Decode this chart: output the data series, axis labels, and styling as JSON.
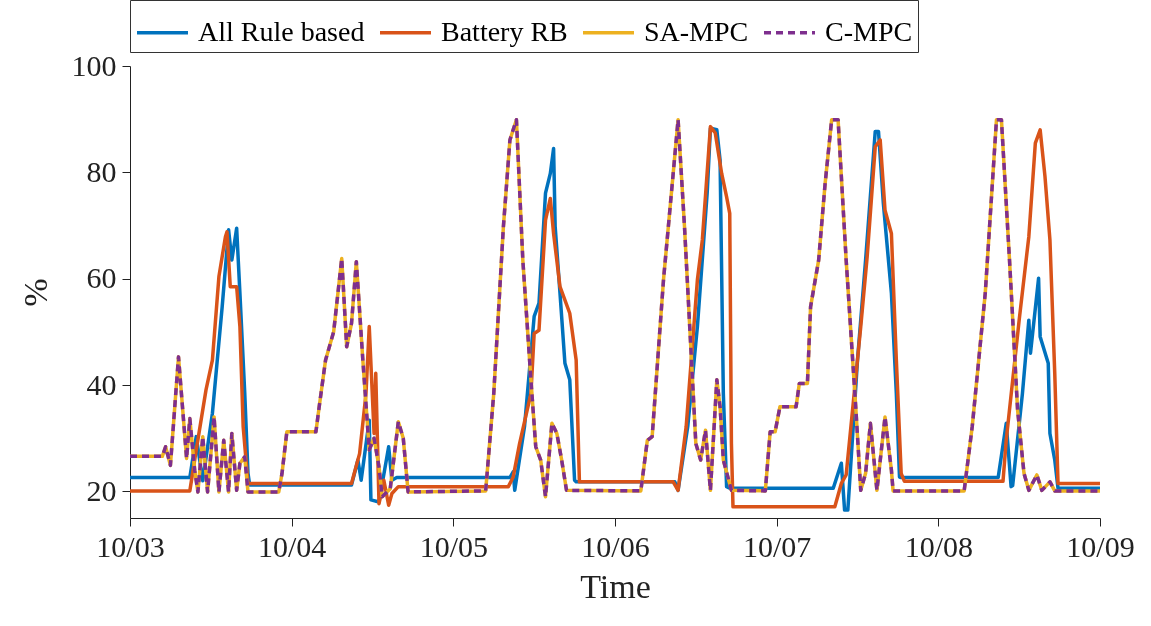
{
  "chart_data": {
    "type": "line",
    "xlabel": "Time",
    "ylabel": "%",
    "xlim": [
      "--10-03",
      "--10-09"
    ],
    "xticks": [
      {
        "value": "--10-03",
        "label": "10/03"
      },
      {
        "value": "--10-04",
        "label": "10/04"
      },
      {
        "value": "--10-05",
        "label": "10/05"
      },
      {
        "value": "--10-06",
        "label": "10/06"
      },
      {
        "value": "--10-07",
        "label": "10/07"
      },
      {
        "value": "--10-08",
        "label": "10/08"
      },
      {
        "value": "--10-09",
        "label": "10/09"
      }
    ],
    "ylim": [
      15,
      100
    ],
    "yticks": [
      20,
      40,
      60,
      80,
      100
    ],
    "legend": "top",
    "marker": "none",
    "series": [
      {
        "name": "All Rule based",
        "color": "#0072bd",
        "line_style": "solid",
        "x": [
          "--10-03T00:00",
          "--10-03T08:53",
          "--10-03T09:50",
          "--10-03T10:48",
          "--10-03T12:14",
          "--10-03T13:41",
          "--10-03T14:38",
          "--10-03T15:07",
          "--10-03T15:50",
          "--10-03T16:19",
          "--10-03T17:02",
          "--10-03T17:31",
          "--10-03T17:46",
          "--10-04T08:53",
          "--10-04T09:50",
          "--10-04T10:19",
          "--10-04T11:31",
          "--10-04T11:46",
          "--10-04T12:58",
          "--10-04T14:24",
          "--10-04T14:53",
          "--10-04T15:36",
          "--10-05T08:24",
          "--10-05T08:53",
          "--10-05T09:07",
          "--10-05T10:34",
          "--10-05T12:00",
          "--10-05T12:43",
          "--10-05T13:41",
          "--10-05T14:24",
          "--10-05T14:53",
          "--10-05T15:07",
          "--10-05T15:50",
          "--10-05T16:34",
          "--10-05T17:17",
          "--10-05T18:00",
          "--10-05T18:14",
          "--10-06T08:53",
          "--10-06T09:22",
          "--10-06T10:48",
          "--10-06T12:14",
          "--10-06T13:41",
          "--10-06T14:10",
          "--10-06T15:07",
          "--10-06T15:36",
          "--10-06T16:05",
          "--10-06T16:34",
          "--10-06T17:02",
          "--10-07T08:24",
          "--10-07T09:36",
          "--10-07T10:05",
          "--10-07T10:34",
          "--10-07T12:00",
          "--10-07T13:12",
          "--10-07T14:38",
          "--10-07T15:07",
          "--10-07T15:50",
          "--10-07T17:02",
          "--10-07T17:46",
          "--10-07T18:14",
          "--10-07T18:29",
          "--10-08T08:53",
          "--10-08T10:05",
          "--10-08T10:48",
          "--10-08T11:02",
          "--10-08T12:29",
          "--10-08T13:26",
          "--10-08T13:41",
          "--10-08T14:53",
          "--10-08T15:07",
          "--10-08T16:19",
          "--10-08T16:34",
          "--10-08T17:17",
          "--10-08T17:46",
          "--10-09T00:00"
        ],
        "values": [
          22.6,
          22.6,
          30.3,
          22,
          34.7,
          54.7,
          69.2,
          63.5,
          69.5,
          57.3,
          38.5,
          23.4,
          21.2,
          21.2,
          25.9,
          22.1,
          33.4,
          18.4,
          18,
          28.4,
          22.1,
          22.6,
          22.6,
          23.7,
          20.2,
          32.2,
          52.9,
          55.4,
          76.1,
          79.8,
          84.5,
          69.8,
          57.3,
          44.1,
          41,
          22.1,
          21.8,
          21.8,
          20.2,
          32.2,
          51,
          76.1,
          88.3,
          88,
          82.3,
          38.4,
          20.9,
          20.6,
          20.6,
          25.3,
          16.5,
          16.5,
          44.7,
          63.5,
          87.7,
          87.7,
          74.2,
          57.3,
          38.4,
          22.7,
          22.6,
          22.6,
          32.8,
          20.9,
          21.1,
          38.4,
          52.2,
          46,
          60.1,
          49.1,
          44.1,
          30.9,
          25.9,
          20.6,
          20.6
        ]
      },
      {
        "name": "Battery RB",
        "color": "#d95319",
        "line_style": "solid",
        "x": [
          "--10-03T00:00",
          "--10-03T08:53",
          "--10-03T09:50",
          "--10-03T11:17",
          "--10-03T12:14",
          "--10-03T13:12",
          "--10-03T14:10",
          "--10-03T14:24",
          "--10-03T14:53",
          "--10-03T15:50",
          "--10-03T16:19",
          "--10-03T16:48",
          "--10-03T17:31",
          "--10-04T08:53",
          "--10-04T10:05",
          "--10-04T11:02",
          "--10-04T11:31",
          "--10-04T12:14",
          "--10-04T12:29",
          "--10-04T12:58",
          "--10-04T13:41",
          "--10-04T14:24",
          "--10-04T14:53",
          "--10-04T15:50",
          "--10-05T08:10",
          "--10-05T08:53",
          "--10-05T09:50",
          "--10-05T11:31",
          "--10-05T12:00",
          "--10-05T12:43",
          "--10-05T13:41",
          "--10-05T14:24",
          "--10-05T14:53",
          "--10-05T15:50",
          "--10-05T17:17",
          "--10-05T18:14",
          "--10-05T18:43",
          "--10-06T08:38",
          "--10-06T09:22",
          "--10-06T10:34",
          "--10-06T12:14",
          "--10-06T12:58",
          "--10-06T14:10",
          "--10-06T14:53",
          "--10-06T15:50",
          "--10-06T16:34",
          "--10-06T17:02",
          "--10-06T17:17",
          "--10-06T17:31",
          "--10-07T08:38",
          "--10-07T09:36",
          "--10-07T10:19",
          "--10-07T12:29",
          "--10-07T13:26",
          "--10-07T14:38",
          "--10-07T15:22",
          "--10-07T16:05",
          "--10-07T17:02",
          "--10-07T17:46",
          "--10-07T18:29",
          "--10-07T18:58",
          "--10-08T09:36",
          "--10-08T10:05",
          "--10-08T12:00",
          "--10-08T13:26",
          "--10-08T14:24",
          "--10-08T15:07",
          "--10-08T15:50",
          "--10-08T16:34",
          "--10-08T17:17",
          "--10-08T17:46",
          "--10-09T00:00"
        ],
        "values": [
          20.1,
          20.1,
          27.8,
          39.1,
          44.7,
          60.4,
          67.9,
          68.8,
          58.5,
          58.5,
          51,
          32.2,
          21.5,
          21.5,
          27.1,
          38.4,
          51,
          30.9,
          42.2,
          17.7,
          22.1,
          17.4,
          19.6,
          20.9,
          20.9,
          22.7,
          29,
          38.4,
          49.7,
          50.3,
          71,
          75.1,
          68.5,
          58.5,
          53.5,
          44.7,
          21.8,
          21.8,
          20.2,
          32.2,
          59.8,
          67.3,
          88.6,
          87.4,
          79.8,
          75.4,
          72.3,
          29,
          17.1,
          17.1,
          21.5,
          23.1,
          51,
          64.1,
          84.8,
          86.1,
          72.9,
          68.5,
          44.7,
          23.4,
          21.9,
          21.9,
          29.7,
          52.2,
          67.9,
          85.5,
          88,
          79.2,
          67.3,
          42.2,
          21.5,
          21.5
        ]
      },
      {
        "name": "SA-MPC",
        "color": "#edb120",
        "line_style": "solid",
        "x": [
          "--10-03T00:00",
          "--10-03T04:48",
          "--10-03T05:17",
          "--10-03T06:00",
          "--10-03T07:12",
          "--10-03T08:24",
          "--10-03T08:53",
          "--10-03T09:36",
          "--10-03T10:05",
          "--10-03T10:48",
          "--10-03T11:31",
          "--10-03T12:29",
          "--10-03T13:12",
          "--10-03T13:55",
          "--10-03T14:38",
          "--10-03T15:07",
          "--10-03T15:50",
          "--10-03T16:19",
          "--10-03T17:02",
          "--10-03T17:31",
          "--10-03T22:05",
          "--10-03T22:34",
          "--10-03T23:17",
          "--10-04T03:36",
          "--10-04T04:05",
          "--10-04T05:02",
          "--10-04T06:14",
          "--10-04T07:26",
          "--10-04T08:10",
          "--10-04T08:53",
          "--10-04T09:36",
          "--10-04T10:34",
          "--10-04T11:31",
          "--10-04T12:14",
          "--10-04T12:58",
          "--10-04T13:26",
          "--10-04T14:38",
          "--10-04T15:50",
          "--10-04T16:34",
          "--10-04T17:17",
          "--10-05T04:48",
          "--10-05T06:00",
          "--10-05T07:26",
          "--10-05T08:24",
          "--10-05T09:22",
          "--10-05T10:19",
          "--10-05T11:31",
          "--10-05T12:14",
          "--10-05T12:58",
          "--10-05T13:41",
          "--10-05T14:38",
          "--10-05T15:22",
          "--10-05T16:05",
          "--10-05T16:48",
          "--10-06T03:50",
          "--10-06T04:48",
          "--10-06T05:31",
          "--10-06T07:12",
          "--10-06T09:22",
          "--10-06T10:19",
          "--10-06T12:00",
          "--10-06T12:43",
          "--10-06T13:26",
          "--10-06T14:10",
          "--10-06T15:07",
          "--10-06T15:36",
          "--10-06T16:05",
          "--10-06T17:17",
          "--10-06T22:19",
          "--10-06T23:02",
          "--10-06T23:46",
          "--10-07T00:29",
          "--10-07T02:53",
          "--10-07T03:22",
          "--10-07T04:34",
          "--10-07T05:02",
          "--10-07T06:14",
          "--10-07T07:12",
          "--10-07T08:10",
          "--10-07T09:07",
          "--10-07T10:19",
          "--10-07T11:46",
          "--10-07T12:29",
          "--10-07T13:12",
          "--10-07T13:55",
          "--10-07T14:53",
          "--10-07T16:05",
          "--10-07T17:02",
          "--10-07T17:17",
          "--10-08T03:50",
          "--10-08T05:02",
          "--10-08T06:58",
          "--10-08T08:38",
          "--10-08T09:22",
          "--10-08T10:34",
          "--10-08T11:46",
          "--10-08T12:43",
          "--10-08T13:26",
          "--10-08T14:38",
          "--10-08T15:22",
          "--10-08T16:34",
          "--10-08T17:17",
          "--10-09T00:00"
        ],
        "values": [
          26.6,
          26.6,
          28.4,
          24.9,
          45.3,
          26.2,
          33.7,
          24,
          19.9,
          30.3,
          19.9,
          34,
          19.9,
          29.6,
          19.9,
          30.9,
          20.2,
          25.3,
          26.5,
          19.9,
          19.9,
          23.4,
          31.2,
          31.2,
          35.9,
          44.7,
          50,
          63.8,
          47.2,
          51.6,
          63.2,
          44.7,
          27.8,
          30,
          24.6,
          19,
          20.5,
          33.1,
          30,
          19.9,
          20.1,
          38.4,
          69.8,
          86.1,
          89.9,
          63.5,
          41,
          28.4,
          25.9,
          19,
          32.8,
          30.9,
          25.9,
          20.2,
          20.1,
          29.6,
          30.3,
          59.8,
          89.9,
          69.8,
          29,
          25.9,
          31.5,
          20.2,
          41,
          35.9,
          25.9,
          20.2,
          20.1,
          31.2,
          31.2,
          35.9,
          35.9,
          40.3,
          40.3,
          54.7,
          63.5,
          78,
          89.9,
          89.9,
          63.5,
          35.3,
          20.2,
          23.4,
          32.8,
          20.2,
          34,
          24,
          20.1,
          20.1,
          32.2,
          57.3,
          89.9,
          89.9,
          63.5,
          35.3,
          23.4,
          20.2,
          23.1,
          20.2,
          21.8,
          20.1,
          20.1
        ]
      },
      {
        "name": "C-MPC",
        "color": "#7e2f8e",
        "line_style": "dashed",
        "x": [
          "--10-03T00:00",
          "--10-03T04:48",
          "--10-03T05:17",
          "--10-03T06:00",
          "--10-03T07:12",
          "--10-03T08:24",
          "--10-03T08:53",
          "--10-03T09:36",
          "--10-03T10:05",
          "--10-03T10:48",
          "--10-03T11:31",
          "--10-03T12:29",
          "--10-03T13:12",
          "--10-03T13:55",
          "--10-03T14:38",
          "--10-03T15:07",
          "--10-03T15:50",
          "--10-03T16:19",
          "--10-03T17:02",
          "--10-03T17:31",
          "--10-03T22:05",
          "--10-03T22:34",
          "--10-03T23:17",
          "--10-04T03:36",
          "--10-04T04:05",
          "--10-04T05:02",
          "--10-04T06:14",
          "--10-04T07:26",
          "--10-04T08:10",
          "--10-04T08:53",
          "--10-04T09:36",
          "--10-04T10:34",
          "--10-04T11:31",
          "--10-04T12:14",
          "--10-04T12:58",
          "--10-04T13:26",
          "--10-04T14:38",
          "--10-04T15:50",
          "--10-04T16:34",
          "--10-04T17:17",
          "--10-05T04:48",
          "--10-05T06:00",
          "--10-05T07:26",
          "--10-05T08:24",
          "--10-05T09:22",
          "--10-05T10:19",
          "--10-05T11:31",
          "--10-05T12:14",
          "--10-05T12:58",
          "--10-05T13:41",
          "--10-05T14:38",
          "--10-05T15:22",
          "--10-05T16:05",
          "--10-05T16:48",
          "--10-06T03:50",
          "--10-06T04:48",
          "--10-06T05:31",
          "--10-06T07:12",
          "--10-06T09:22",
          "--10-06T10:19",
          "--10-06T12:00",
          "--10-06T12:43",
          "--10-06T13:26",
          "--10-06T14:10",
          "--10-06T15:07",
          "--10-06T15:36",
          "--10-06T16:05",
          "--10-06T17:17",
          "--10-06T22:19",
          "--10-06T23:02",
          "--10-06T23:46",
          "--10-07T00:29",
          "--10-07T02:53",
          "--10-07T03:22",
          "--10-07T04:34",
          "--10-07T05:02",
          "--10-07T06:14",
          "--10-07T07:12",
          "--10-07T08:10",
          "--10-07T09:07",
          "--10-07T10:19",
          "--10-07T11:46",
          "--10-07T12:29",
          "--10-07T13:12",
          "--10-07T13:55",
          "--10-07T14:53",
          "--10-07T16:05",
          "--10-07T17:02",
          "--10-07T17:17",
          "--10-08T03:50",
          "--10-08T05:02",
          "--10-08T06:58",
          "--10-08T08:38",
          "--10-08T09:22",
          "--10-08T10:34",
          "--10-08T11:46",
          "--10-08T12:43",
          "--10-08T13:26",
          "--10-08T14:38",
          "--10-08T15:22",
          "--10-08T16:34",
          "--10-08T17:17",
          "--10-09T00:00"
        ],
        "values": [
          26.6,
          26.6,
          28.4,
          24.9,
          45.3,
          26.2,
          33.7,
          24,
          19.9,
          30.3,
          19.9,
          34,
          19.9,
          29.6,
          19.9,
          30.9,
          20.2,
          25.3,
          26.5,
          19.9,
          19.9,
          23.4,
          31.2,
          31.2,
          35.9,
          44.7,
          50,
          63.8,
          47.2,
          51.6,
          63.2,
          44.7,
          27.8,
          30,
          24.6,
          19,
          20.5,
          33.1,
          30,
          19.9,
          20.1,
          38.4,
          69.8,
          86.1,
          89.9,
          63.5,
          41,
          28.4,
          25.9,
          19,
          32.8,
          30.9,
          25.9,
          20.2,
          20.1,
          29.6,
          30.3,
          59.8,
          89.9,
          69.8,
          29,
          25.9,
          31.5,
          20.2,
          41,
          35.9,
          25.9,
          20.2,
          20.1,
          31.2,
          31.2,
          35.9,
          35.9,
          40.3,
          40.3,
          54.7,
          63.5,
          78,
          89.9,
          89.9,
          63.5,
          35.3,
          20.2,
          23.4,
          32.8,
          20.2,
          34,
          24,
          20.1,
          20.1,
          32.2,
          57.3,
          89.9,
          89.9,
          63.5,
          35.3,
          23.4,
          20.2,
          23.1,
          20.2,
          21.8,
          20.1,
          20.1
        ]
      }
    ]
  }
}
